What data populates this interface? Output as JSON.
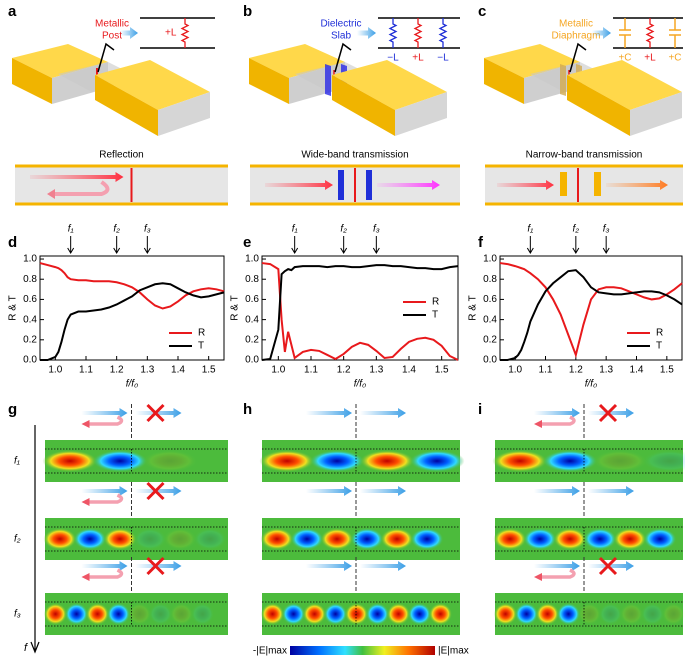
{
  "panel_labels": [
    "a",
    "b",
    "c",
    "d",
    "e",
    "f",
    "g",
    "h",
    "i"
  ],
  "circuits": [
    {
      "label_lines": [
        "Metallic",
        "Post"
      ],
      "elements": [
        "+L"
      ],
      "caption": "Reflection"
    },
    {
      "label_lines": [
        "Dielectric",
        "Slab"
      ],
      "elements": [
        "−L",
        "+L",
        "−L"
      ],
      "caption": "Wide-band transmission"
    },
    {
      "label_lines": [
        "Metallic",
        "Diaphragm"
      ],
      "elements": [
        "+C",
        "+L",
        "+C"
      ],
      "caption": "Narrow-band transmission"
    }
  ],
  "chart_data": [
    {
      "type": "line",
      "x": [
        0.95,
        0.975,
        1.0,
        1.01,
        1.02,
        1.03,
        1.04,
        1.05,
        1.075,
        1.1,
        1.125,
        1.15,
        1.175,
        1.2,
        1.225,
        1.25,
        1.275,
        1.3,
        1.325,
        1.35,
        1.375,
        1.4,
        1.425,
        1.45,
        1.475,
        1.5,
        1.525,
        1.55
      ],
      "series": [
        {
          "name": "R",
          "color": "#e8191c",
          "values": [
            0.96,
            0.94,
            0.92,
            0.91,
            0.89,
            0.86,
            0.82,
            0.8,
            0.79,
            0.79,
            0.78,
            0.78,
            0.78,
            0.77,
            0.75,
            0.72,
            0.67,
            0.6,
            0.54,
            0.51,
            0.53,
            0.58,
            0.64,
            0.68,
            0.7,
            0.71,
            0.7,
            0.68
          ]
        },
        {
          "name": "T",
          "color": "#000000",
          "values": [
            0,
            0,
            0.03,
            0.08,
            0.18,
            0.3,
            0.4,
            0.45,
            0.48,
            0.48,
            0.49,
            0.5,
            0.52,
            0.55,
            0.59,
            0.63,
            0.69,
            0.72,
            0.75,
            0.76,
            0.75,
            0.71,
            0.67,
            0.64,
            0.62,
            0.63,
            0.65,
            0.67
          ]
        }
      ],
      "xlim": [
        0.95,
        1.55
      ],
      "ylim": [
        0,
        1.03
      ],
      "xticks": [
        {
          "value": 1,
          "label": "1.0"
        },
        1.1,
        1.2,
        1.3,
        1.4,
        1.5
      ],
      "yticks": [
        {
          "value": 0,
          "label": "0.0"
        },
        0.2,
        0.4,
        0.6,
        0.8,
        {
          "value": 1,
          "label": "1.0"
        }
      ],
      "x_label": "f/f₀",
      "y_label": "R & T",
      "markers": [
        {
          "label": "f₁",
          "x": 1.05
        },
        {
          "label": "f₂",
          "x": 1.2
        },
        {
          "label": "f₃",
          "x": 1.3
        }
      ],
      "legend": "lower right"
    },
    {
      "type": "line",
      "x": [
        0.95,
        0.975,
        1.0,
        1.01,
        1.02,
        1.03,
        1.04,
        1.05,
        1.075,
        1.1,
        1.125,
        1.15,
        1.175,
        1.2,
        1.225,
        1.25,
        1.275,
        1.3,
        1.325,
        1.35,
        1.375,
        1.4,
        1.425,
        1.45,
        1.475,
        1.5,
        1.525,
        1.55
      ],
      "series": [
        {
          "name": "R",
          "color": "#e8191c",
          "values": [
            0.96,
            0.95,
            0.9,
            0.4,
            0.08,
            0.28,
            0.15,
            0.02,
            0.08,
            0.1,
            0.09,
            0.05,
            0.01,
            0.06,
            0.13,
            0.17,
            0.15,
            0.09,
            0.02,
            0.03,
            0.11,
            0.18,
            0.21,
            0.22,
            0.2,
            0.14,
            0.04,
            0.0
          ]
        },
        {
          "name": "T",
          "color": "#000000",
          "values": [
            0.0,
            0.01,
            0.3,
            0.85,
            0.88,
            0.9,
            0.89,
            0.92,
            0.93,
            0.93,
            0.93,
            0.92,
            0.93,
            0.93,
            0.92,
            0.92,
            0.93,
            0.94,
            0.94,
            0.93,
            0.93,
            0.92,
            0.91,
            0.91,
            0.9,
            0.9,
            0.92,
            0.93
          ]
        }
      ],
      "xlim": [
        0.95,
        1.55
      ],
      "ylim": [
        0,
        1.03
      ],
      "xticks": [
        {
          "value": 1,
          "label": "1.0"
        },
        1.1,
        1.2,
        1.3,
        1.4,
        1.5
      ],
      "yticks": [
        {
          "value": 0,
          "label": "0.0"
        },
        0.2,
        0.4,
        0.6,
        0.8,
        {
          "value": 1,
          "label": "1.0"
        }
      ],
      "x_label": "f/f₀",
      "y_label": "R & T",
      "markers": [
        {
          "label": "f₁",
          "x": 1.05
        },
        {
          "label": "f₂",
          "x": 1.2
        },
        {
          "label": "f₃",
          "x": 1.3
        }
      ],
      "legend": "center right"
    },
    {
      "type": "line",
      "x": [
        0.95,
        0.975,
        1.0,
        1.01,
        1.02,
        1.03,
        1.04,
        1.05,
        1.075,
        1.1,
        1.125,
        1.15,
        1.175,
        1.2,
        1.225,
        1.25,
        1.275,
        1.3,
        1.325,
        1.35,
        1.375,
        1.4,
        1.425,
        1.45,
        1.475,
        1.5,
        1.525,
        1.55
      ],
      "series": [
        {
          "name": "R",
          "color": "#e8191c",
          "values": [
            0.96,
            0.95,
            0.93,
            0.92,
            0.91,
            0.9,
            0.88,
            0.86,
            0.8,
            0.72,
            0.6,
            0.45,
            0.25,
            0.05,
            0.35,
            0.6,
            0.7,
            0.72,
            0.72,
            0.71,
            0.68,
            0.65,
            0.62,
            0.6,
            0.61,
            0.65,
            0.7,
            0.76
          ]
        },
        {
          "name": "T",
          "color": "#000000",
          "values": [
            0,
            0,
            0.02,
            0.05,
            0.1,
            0.18,
            0.27,
            0.38,
            0.55,
            0.68,
            0.76,
            0.82,
            0.88,
            0.89,
            0.82,
            0.72,
            0.67,
            0.66,
            0.65,
            0.65,
            0.66,
            0.67,
            0.68,
            0.68,
            0.67,
            0.64,
            0.6,
            0.55
          ]
        }
      ],
      "xlim": [
        0.95,
        1.55
      ],
      "ylim": [
        0,
        1.03
      ],
      "xticks": [
        {
          "value": 1,
          "label": "1.0"
        },
        1.1,
        1.2,
        1.3,
        1.4,
        1.5
      ],
      "yticks": [
        {
          "value": 0,
          "label": "0.0"
        },
        0.2,
        0.4,
        0.6,
        0.8,
        {
          "value": 1,
          "label": "1.0"
        }
      ],
      "x_label": "f/f₀",
      "y_label": "R & T",
      "markers": [
        {
          "label": "f₁",
          "x": 1.05
        },
        {
          "label": "f₂",
          "x": 1.2
        },
        {
          "label": "f₃",
          "x": 1.3
        }
      ],
      "legend": "lower right"
    }
  ],
  "field_maps": {
    "frequency_labels": [
      "f₁",
      "f₂",
      "f₃"
    ],
    "axis_label": "f",
    "colorbar": {
      "min_label": "-|E|max",
      "max_label": "|E|max"
    }
  }
}
